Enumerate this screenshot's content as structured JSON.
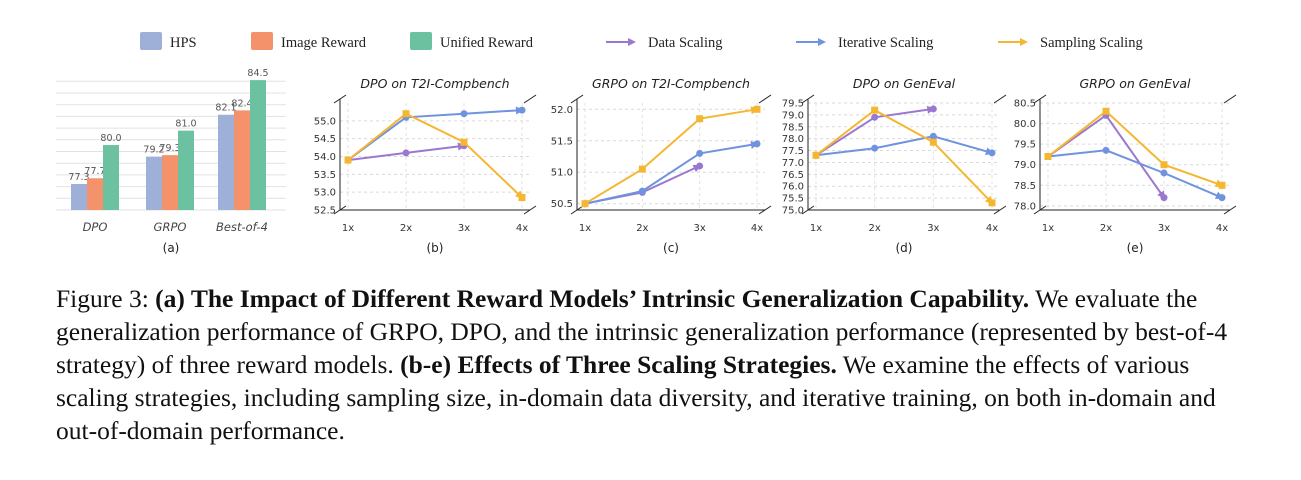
{
  "legend": {
    "bars": [
      {
        "label": "HPS",
        "color": "#9fb0d8"
      },
      {
        "label": "Image Reward",
        "color": "#f4926c"
      },
      {
        "label": "Unified Reward",
        "color": "#6cc1a0"
      }
    ],
    "lines": [
      {
        "label": "Data Scaling",
        "color": "#9b78cf"
      },
      {
        "label": "Iterative Scaling",
        "color": "#6f93df"
      },
      {
        "label": "Sampling Scaling",
        "color": "#f5b731"
      }
    ]
  },
  "chart_data": [
    {
      "type": "bar",
      "title": "",
      "panel_label": "(a)",
      "categories": [
        "DPO",
        "GRPO",
        "Best-of-4"
      ],
      "series": [
        {
          "name": "HPS",
          "values": [
            77.3,
            79.2,
            82.1
          ]
        },
        {
          "name": "Image Reward",
          "values": [
            77.7,
            79.3,
            82.4
          ]
        },
        {
          "name": "Unified Reward",
          "values": [
            80.0,
            81.0,
            84.5
          ]
        }
      ],
      "value_labels": [
        [
          "77.3",
          "77.7",
          "80.0"
        ],
        [
          "79.2",
          "79.3",
          "81.0"
        ],
        [
          "82.1",
          "82.4",
          "84.5"
        ]
      ],
      "ylim": [
        75.5,
        85.2
      ],
      "grid": true
    },
    {
      "type": "line",
      "title": "DPO on T2I-Compbench",
      "panel_label": "(b)",
      "x": [
        "1x",
        "2x",
        "3x",
        "4x"
      ],
      "yticks": [
        "52.5",
        "53.0",
        "53.5",
        "54.0",
        "54.5",
        "55.0"
      ],
      "ylim": [
        52.5,
        55.5
      ],
      "series": [
        {
          "name": "Data Scaling",
          "values": [
            53.9,
            54.1,
            54.3,
            null
          ]
        },
        {
          "name": "Iterative Scaling",
          "values": [
            53.9,
            55.1,
            55.2,
            55.3
          ]
        },
        {
          "name": "Sampling Scaling",
          "values": [
            53.9,
            55.2,
            54.4,
            52.85
          ]
        }
      ]
    },
    {
      "type": "line",
      "title": "GRPO on T2I-Compbench",
      "panel_label": "(c)",
      "x": [
        "1x",
        "2x",
        "3x",
        "4x"
      ],
      "yticks": [
        "50.5",
        "51.0",
        "51.5",
        "52.0"
      ],
      "ylim": [
        50.4,
        52.1
      ],
      "series": [
        {
          "name": "Data Scaling",
          "values": [
            50.5,
            50.68,
            51.1,
            null
          ]
        },
        {
          "name": "Iterative Scaling",
          "values": [
            50.5,
            50.7,
            51.3,
            51.45
          ]
        },
        {
          "name": "Sampling Scaling",
          "values": [
            50.5,
            51.05,
            51.85,
            52.0
          ]
        }
      ]
    },
    {
      "type": "line",
      "title": "DPO on GenEval",
      "panel_label": "(d)",
      "x": [
        "1x",
        "2x",
        "3x",
        "4x"
      ],
      "yticks": [
        "75.0",
        "75.5",
        "76.0",
        "76.5",
        "77.0",
        "77.5",
        "78.0",
        "78.5",
        "79.0",
        "79.5"
      ],
      "ylim": [
        75.0,
        79.5
      ],
      "series": [
        {
          "name": "Data Scaling",
          "values": [
            77.3,
            78.9,
            79.25,
            null
          ]
        },
        {
          "name": "Iterative Scaling",
          "values": [
            77.3,
            77.6,
            78.1,
            77.4
          ]
        },
        {
          "name": "Sampling Scaling",
          "values": [
            77.3,
            79.2,
            77.85,
            75.3
          ]
        }
      ]
    },
    {
      "type": "line",
      "title": "GRPO on GenEval",
      "panel_label": "(e)",
      "x": [
        "1x",
        "2x",
        "3x",
        "4x"
      ],
      "yticks": [
        "78.0",
        "78.5",
        "79.0",
        "79.5",
        "80.0",
        "80.5"
      ],
      "ylim": [
        77.9,
        80.5
      ],
      "series": [
        {
          "name": "Data Scaling",
          "values": [
            79.2,
            80.2,
            78.2,
            null
          ]
        },
        {
          "name": "Iterative Scaling",
          "values": [
            79.2,
            79.35,
            78.8,
            78.2
          ]
        },
        {
          "name": "Sampling Scaling",
          "values": [
            79.2,
            80.3,
            79.0,
            78.5
          ]
        }
      ]
    }
  ],
  "caption": {
    "figure_label": "Figure 3: ",
    "bold_a": "(a) The Impact of Different Reward Models’ Intrinsic Generalization Capability.",
    "text_a": " We evaluate the generalization performance of GRPO, DPO, and the intrinsic generalization performance (represented by best-of-4 strategy) of three reward models. ",
    "bold_b": "(b-e) Effects of Three Scaling Strategies.",
    "text_b": " We examine the effects of various scaling strategies, including sampling size, in-domain data diversity, and iterative training, on both in-domain and out-of-domain performance."
  }
}
